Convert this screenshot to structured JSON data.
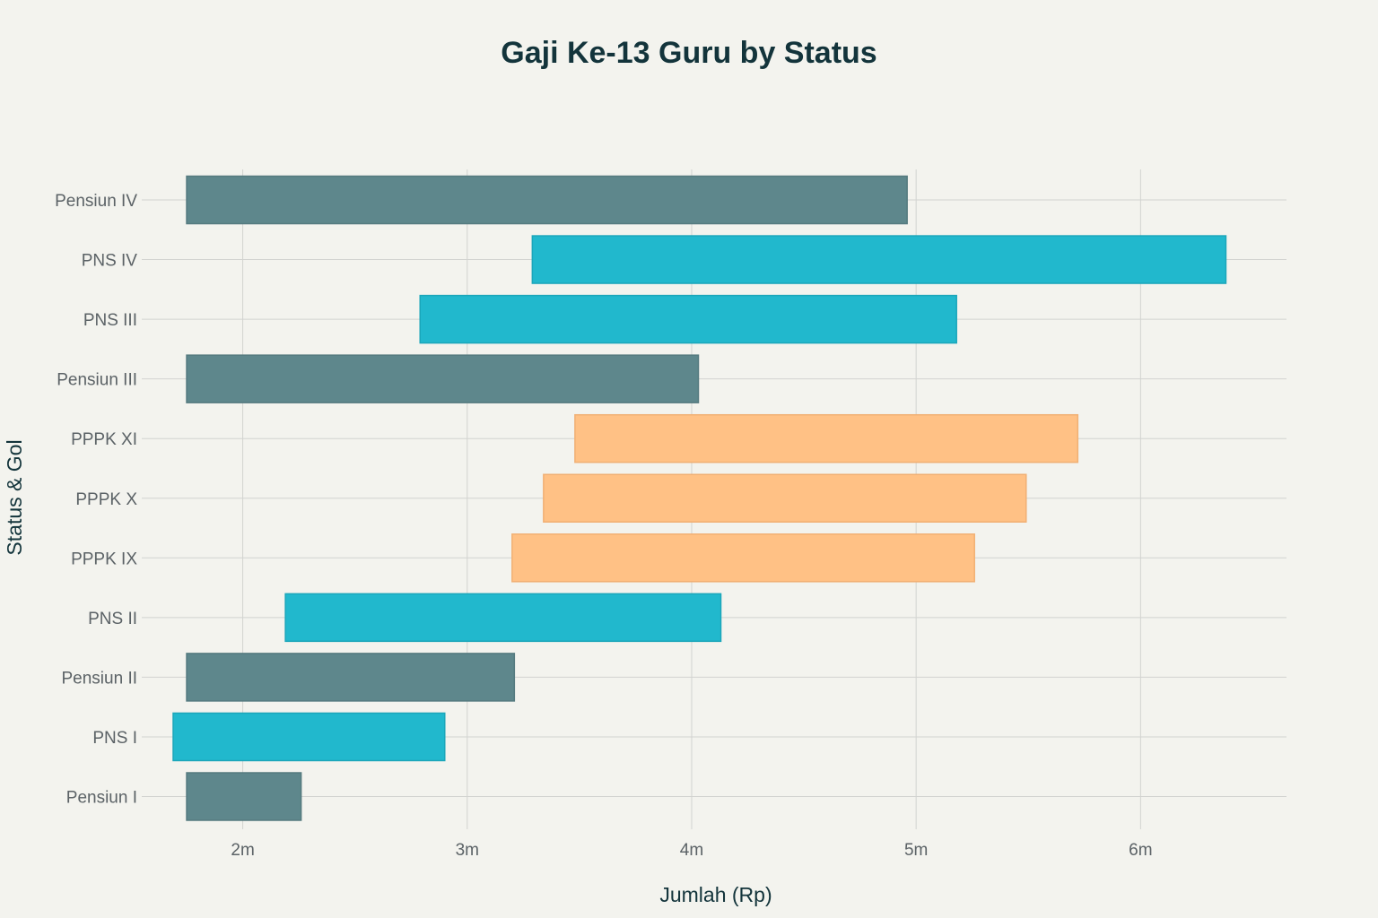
{
  "chart_data": {
    "type": "bar",
    "orientation": "horizontal",
    "subtype": "floating-range",
    "title": "Gaji Ke-13 Guru by Status",
    "xlabel": "Jumlah (Rp)",
    "ylabel": "Status & Gol",
    "xlim": [
      1.55,
      6.65
    ],
    "xticks": [
      {
        "value": 2,
        "label": "2m"
      },
      {
        "value": 3,
        "label": "3m"
      },
      {
        "value": 4,
        "label": "4m"
      },
      {
        "value": 5,
        "label": "5m"
      },
      {
        "value": 6,
        "label": "6m"
      }
    ],
    "grid": true,
    "categories": [
      "Pensiun IV",
      "PNS IV",
      "PNS III",
      "Pensiun III",
      "PPPK XI",
      "PPPK X",
      "PPPK IX",
      "PNS II",
      "Pensiun II",
      "PNS I",
      "Pensiun I"
    ],
    "bars": [
      {
        "category": "Pensiun IV",
        "group": "Pensiun",
        "start": 1.75,
        "end": 4.96
      },
      {
        "category": "PNS IV",
        "group": "PNS",
        "start": 3.29,
        "end": 6.38
      },
      {
        "category": "PNS III",
        "group": "PNS",
        "start": 2.79,
        "end": 5.18
      },
      {
        "category": "Pensiun III",
        "group": "Pensiun",
        "start": 1.75,
        "end": 4.03
      },
      {
        "category": "PPPK XI",
        "group": "PPPK",
        "start": 3.48,
        "end": 5.72
      },
      {
        "category": "PPPK X",
        "group": "PPPK",
        "start": 3.34,
        "end": 5.49
      },
      {
        "category": "PPPK IX",
        "group": "PPPK",
        "start": 3.2,
        "end": 5.26
      },
      {
        "category": "PNS II",
        "group": "PNS",
        "start": 2.19,
        "end": 4.13
      },
      {
        "category": "Pensiun II",
        "group": "Pensiun",
        "start": 1.75,
        "end": 3.21
      },
      {
        "category": "PNS I",
        "group": "PNS",
        "start": 1.69,
        "end": 2.9
      },
      {
        "category": "Pensiun I",
        "group": "Pensiun",
        "start": 1.75,
        "end": 2.26
      }
    ],
    "colors": {
      "PNS": {
        "fill": "#21b8cd",
        "stroke": "#1ba6ba"
      },
      "Pensiun": {
        "fill": "#5e878c",
        "stroke": "#557a7f"
      },
      "PPPK": {
        "fill": "#ffc185",
        "stroke": "#f1b074"
      }
    }
  }
}
